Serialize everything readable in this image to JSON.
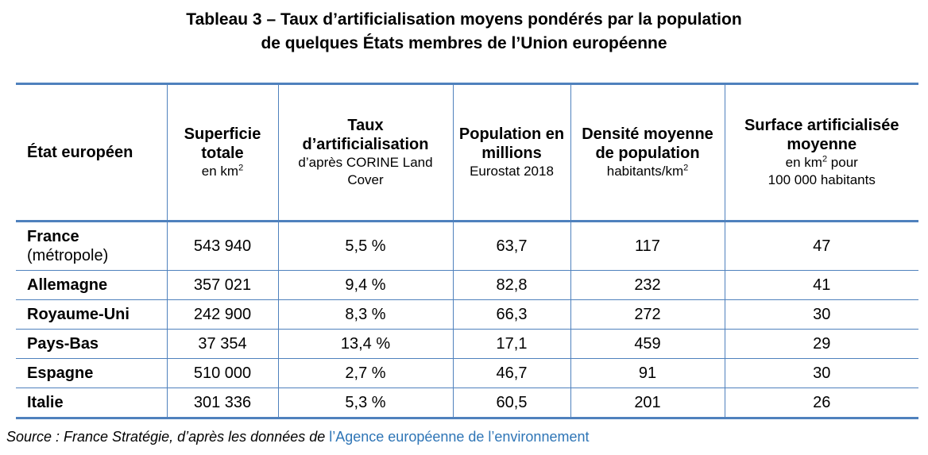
{
  "title": {
    "line1": "Tableau 3 – Taux d’artificialisation moyens pondérés par la population",
    "line2": "de quelques États membres de l’Union européenne"
  },
  "headers": {
    "state": {
      "bold": "État européen"
    },
    "area": {
      "bold": "Superficie totale",
      "sub": "en km",
      "sup": "2"
    },
    "rate": {
      "bold": "Taux d’artificialisation",
      "sub": "d’après CORINE Land Cover"
    },
    "population": {
      "bold": "Population en millions",
      "sub": "Eurostat 2018"
    },
    "density": {
      "bold": "Densité moyenne de population",
      "sub": "habitants/km",
      "sup": "2"
    },
    "surface": {
      "bold": "Surface artificialisée moyenne",
      "sub_a": "en km",
      "sup": "2",
      "sub_b": " pour",
      "sub_c": "100 000 habitants"
    }
  },
  "rows": [
    {
      "country": "France",
      "note": "(métropole)",
      "area": "543 940",
      "rate": "5,5 %",
      "population": "63,7",
      "density": "117",
      "surface": "47"
    },
    {
      "country": "Allemagne",
      "area": "357 021",
      "rate": "9,4 %",
      "population": "82,8",
      "density": "232",
      "surface": "41"
    },
    {
      "country": "Royaume-Uni",
      "area": "242 900",
      "rate": "8,3 %",
      "population": "66,3",
      "density": "272",
      "surface": "30"
    },
    {
      "country": "Pays-Bas",
      "area": "37 354",
      "rate": "13,4 %",
      "population": "17,1",
      "density": "459",
      "surface": "29"
    },
    {
      "country": "Espagne",
      "area": "510 000",
      "rate": "2,7 %",
      "population": "46,7",
      "density": "91",
      "surface": "30"
    },
    {
      "country": "Italie",
      "area": "301 336",
      "rate": "5,3 %",
      "population": "60,5",
      "density": "201",
      "surface": "26"
    }
  ],
  "source": {
    "prefix": "Source : France Stratégie, d’après les données de ",
    "link": "l’Agence européenne de l’environnement"
  },
  "colors": {
    "border": "#4f81bd",
    "link": "#2e75b6"
  }
}
